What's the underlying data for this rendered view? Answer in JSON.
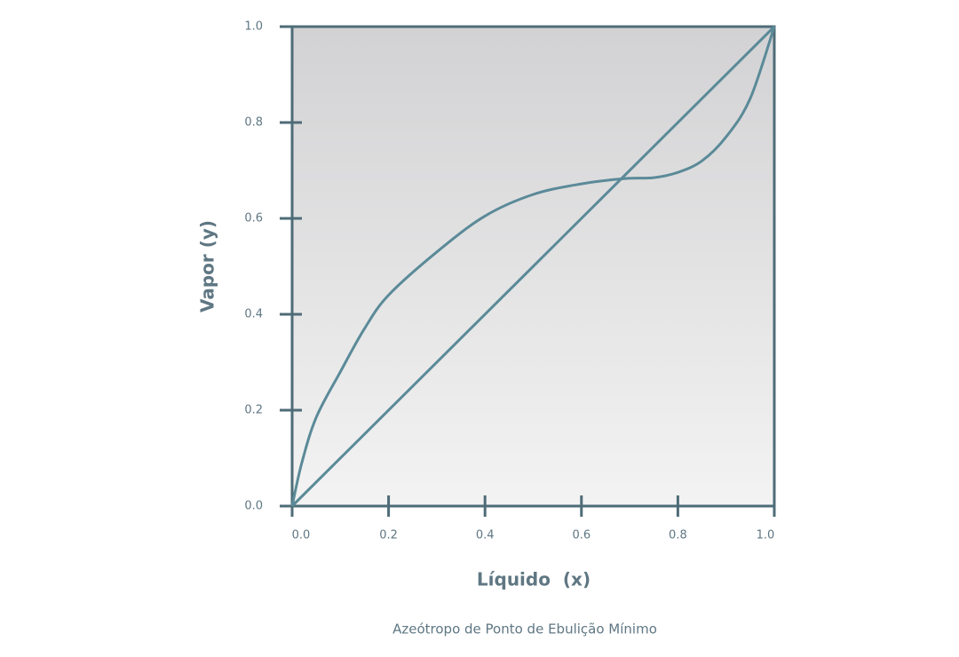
{
  "chart_data": {
    "type": "line",
    "x_label": "Líquido  (x)",
    "y_label": "Vapor (y)",
    "caption": "Azeótropo de Ponto de Ebulição Mínimo",
    "xlim": [
      0,
      1
    ],
    "ylim": [
      0,
      1
    ],
    "xticks": [
      {
        "value": 0,
        "label": "0.0"
      },
      0.2,
      0.4,
      0.6,
      0.8,
      {
        "value": 1,
        "label": "1.0"
      }
    ],
    "yticks": [
      {
        "value": 0,
        "label": "0.0"
      },
      0.2,
      0.4,
      0.6,
      0.8,
      {
        "value": 1,
        "label": "1.0"
      }
    ],
    "series": [
      {
        "color": "#5b8a98",
        "x": [
          0,
          1
        ],
        "values": [
          0,
          1
        ]
      },
      {
        "color": "#5b8a98",
        "x": [
          0,
          0.02,
          0.05,
          0.1,
          0.15,
          0.2,
          0.3,
          0.4,
          0.5,
          0.6,
          0.69,
          0.75,
          0.8,
          0.85,
          0.9,
          0.95,
          1
        ],
        "values": [
          0,
          0.09,
          0.185,
          0.28,
          0.37,
          0.44,
          0.53,
          0.605,
          0.65,
          0.672,
          0.683,
          0.685,
          0.696,
          0.72,
          0.77,
          0.85,
          1
        ]
      }
    ]
  }
}
